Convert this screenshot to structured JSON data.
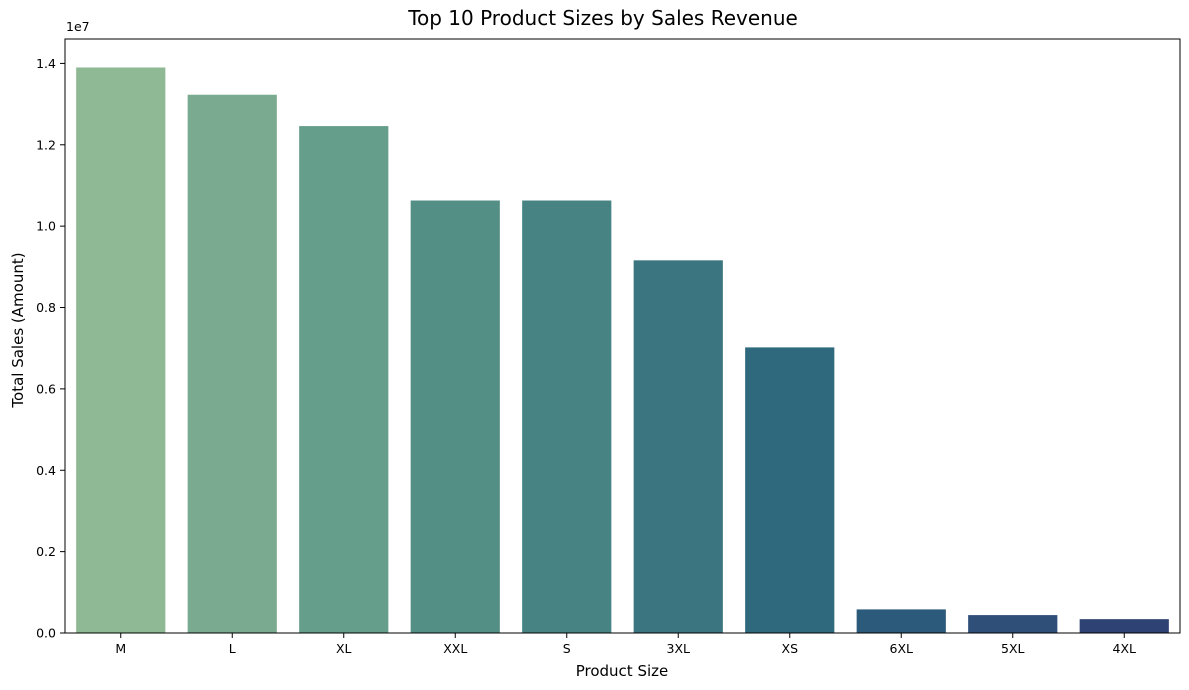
{
  "chart_data": {
    "type": "bar",
    "title": "Top 10 Product Sizes by Sales Revenue",
    "xlabel": "Product Size",
    "ylabel": "Total Sales (Amount)",
    "y_offset_label": "1e7",
    "categories": [
      "M",
      "L",
      "XL",
      "XXL",
      "S",
      "3XL",
      "XS",
      "6XL",
      "5XL",
      "4XL"
    ],
    "values": [
      13900000,
      13230000,
      12460000,
      10630000,
      10630000,
      9160000,
      7020000,
      580000,
      440000,
      340000
    ],
    "ylim": [
      0,
      14600000
    ],
    "yticks": [
      0,
      2000000,
      4000000,
      6000000,
      8000000,
      10000000,
      12000000,
      14000000
    ],
    "ytick_labels": [
      "0.0",
      "0.2",
      "0.4",
      "0.6",
      "0.8",
      "1.0",
      "1.2",
      "1.4"
    ],
    "colors": [
      "#8fb994",
      "#7aaa90",
      "#659f8b",
      "#548f86",
      "#478383",
      "#3b7580",
      "#2f697e",
      "#2c5a7a",
      "#2f4e78",
      "#2e4373"
    ],
    "grid": false,
    "legend": "none"
  }
}
